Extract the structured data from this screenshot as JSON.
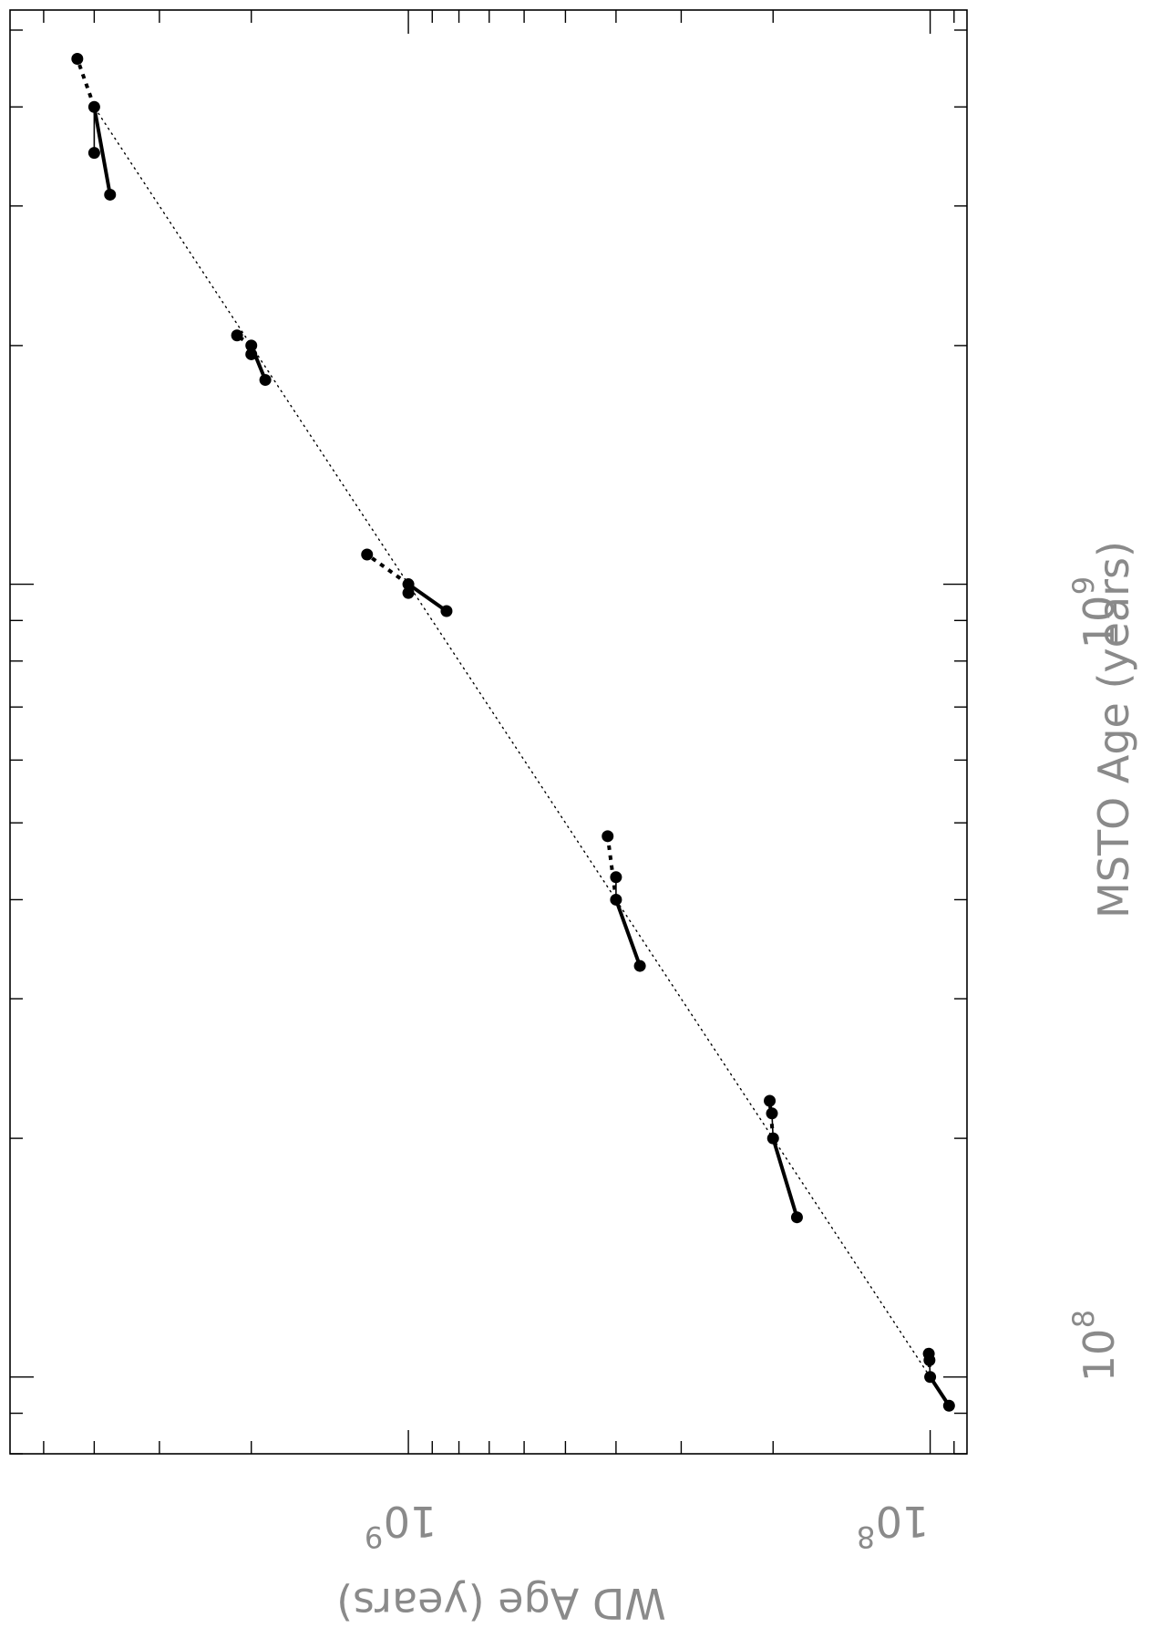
{
  "chart_data": {
    "type": "line",
    "orientation": "rotated-90-clockwise",
    "xlabel": "MSTO Age (years)",
    "ylabel": "WD Age (years)",
    "xscale": "log",
    "yscale": "log",
    "xlim": [
      80000000.0,
      5300000000.0
    ],
    "ylim": [
      85000000.0,
      5800000000.0
    ],
    "x_tick_labels": [
      {
        "value": 100000000.0,
        "base": "10",
        "exp": "8"
      },
      {
        "value": 1000000000.0,
        "base": "10",
        "exp": "9"
      }
    ],
    "y_tick_labels": [
      {
        "value": 100000000.0,
        "base": "10",
        "exp": "8"
      },
      {
        "value": 1000000000.0,
        "base": "10",
        "exp": "9"
      }
    ],
    "reference_line": {
      "style": "dotted",
      "x": [
        100000000.0,
        4000000000.0
      ],
      "y": [
        100000000.0,
        4000000000.0
      ]
    },
    "groups": [
      {
        "msto": {
          "x": 100000000.0,
          "y": 100000000.0
        },
        "solid_to": {
          "x": 92000000.0,
          "y": 92000000.0
        },
        "thin_to": [
          {
            "x": 105000000.0,
            "y": 100300000.0
          }
        ],
        "dashed_to": {
          "x": 107000000.0,
          "y": 100600000.0
        }
      },
      {
        "msto": {
          "x": 200000000.0,
          "y": 200000000.0
        },
        "solid_to": {
          "x": 159000000.0,
          "y": 180000000.0
        },
        "thin_to": [
          {
            "x": 215000000.0,
            "y": 201000000.0
          }
        ],
        "dashed_to": {
          "x": 223000000.0,
          "y": 203000000.0
        }
      },
      {
        "msto": {
          "x": 400000000.0,
          "y": 400000000.0
        },
        "solid_to": {
          "x": 330000000.0,
          "y": 360000000.0
        },
        "thin_to": [
          {
            "x": 427000000.0,
            "y": 400000000.0
          }
        ],
        "dashed_to": {
          "x": 481000000.0,
          "y": 415000000.0
        }
      },
      {
        "msto": {
          "x": 1000000000.0,
          "y": 1000000000.0
        },
        "solid_to": {
          "x": 925000000.0,
          "y": 845000000.0
        },
        "thin_to": [
          {
            "x": 975000000.0,
            "y": 1000000000.0
          }
        ],
        "dashed_to": {
          "x": 1090000000.0,
          "y": 1200000000.0
        }
      },
      {
        "msto": {
          "x": 2000000000.0,
          "y": 2000000000.0
        },
        "solid_to": {
          "x": 1810000000.0,
          "y": 1880000000.0
        },
        "thin_to": [
          {
            "x": 1950000000.0,
            "y": 2000000000.0
          }
        ],
        "dashed_to": {
          "x": 2060000000.0,
          "y": 2130000000.0
        }
      },
      {
        "msto": {
          "x": 4000000000.0,
          "y": 4000000000.0
        },
        "solid_to": {
          "x": 3100000000.0,
          "y": 3730000000.0
        },
        "thin_to": [
          {
            "x": 3500000000.0,
            "y": 4000000000.0
          }
        ],
        "dashed_to": {
          "x": 4600000000.0,
          "y": 4310000000.0
        }
      }
    ]
  }
}
